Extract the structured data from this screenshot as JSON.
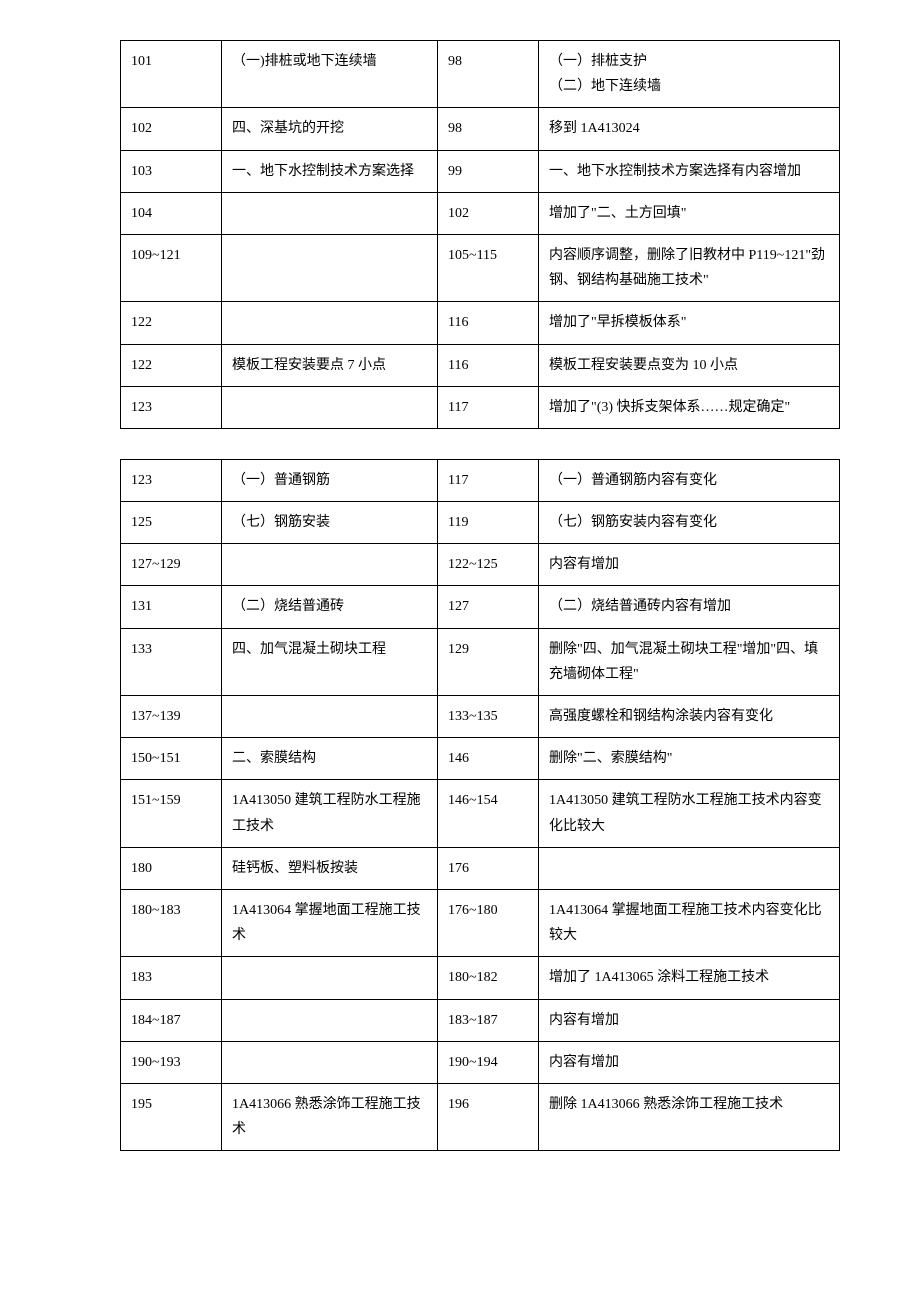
{
  "table1": {
    "rows": [
      {
        "c1": "101",
        "c2": "（一)排桩或地下连续墙",
        "c3": "98",
        "c4": "（一）排桩支护\n（二）地下连续墙"
      },
      {
        "c1": "102",
        "c2": "四、深基坑的开挖",
        "c3": "98",
        "c4": "移到 1A413024"
      },
      {
        "c1": "103",
        "c2": "一、地下水控制技术方案选择",
        "c3": "99",
        "c4": "一、地下水控制技术方案选择有内容增加"
      },
      {
        "c1": "104",
        "c2": "",
        "c3": "102",
        "c4": "增加了\"二、土方回填\""
      },
      {
        "c1": "109~121",
        "c2": "",
        "c3": "105~115",
        "c4": "内容顺序调整，删除了旧教材中 P119~121\"劲钢、钢结构基础施工技术\""
      },
      {
        "c1": "122",
        "c2": "",
        "c3": "116",
        "c4": "增加了\"早拆模板体系\""
      },
      {
        "c1": "122",
        "c2": "模板工程安装要点 7 小点",
        "c3": "116",
        "c4": "模板工程安装要点变为 10 小点"
      },
      {
        "c1": "123",
        "c2": "",
        "c3": "117",
        "c4": "增加了\"(3) 快拆支架体系……规定确定\""
      }
    ]
  },
  "table2": {
    "rows": [
      {
        "c1": "123",
        "c2": "（一）普通钢筋",
        "c3": "117",
        "c4": "（一）普通钢筋内容有变化"
      },
      {
        "c1": "125",
        "c2": "（七）钢筋安装",
        "c3": "119",
        "c4": "（七）钢筋安装内容有变化"
      },
      {
        "c1": "127~129",
        "c2": "",
        "c3": "122~125",
        "c4": "内容有增加"
      },
      {
        "c1": "131",
        "c2": "（二）烧结普通砖",
        "c3": "127",
        "c4": "（二）烧结普通砖内容有增加"
      },
      {
        "c1": "133",
        "c2": "四、加气混凝土砌块工程",
        "c3": "129",
        "c4": "删除\"四、加气混凝土砌块工程\"增加\"四、填充墙砌体工程\""
      },
      {
        "c1": "137~139",
        "c2": "",
        "c3": "133~135",
        "c4": "高强度螺栓和钢结构涂装内容有变化"
      },
      {
        "c1": "150~151",
        "c2": "二、索膜结构",
        "c3": "146",
        "c4": "删除\"二、索膜结构\""
      },
      {
        "c1": "151~159",
        "c2": "1A413050  建筑工程防水工程施工技术",
        "c3": "146~154",
        "c4": "1A413050  建筑工程防水工程施工技术内容变化比较大"
      },
      {
        "c1": "180",
        "c2": "硅钙板、塑料板按装",
        "c3": "176",
        "c4": ""
      },
      {
        "c1": "180~183",
        "c2": "1A413064 掌握地面工程施工技术",
        "c3": "176~180",
        "c4": "1A413064 掌握地面工程施工技术内容变化比较大"
      },
      {
        "c1": "183",
        "c2": "",
        "c3": "180~182",
        "c4": "增加了 1A413065 涂料工程施工技术"
      },
      {
        "c1": "184~187",
        "c2": "",
        "c3": "183~187",
        "c4": "内容有增加"
      },
      {
        "c1": "190~193",
        "c2": "",
        "c3": "190~194",
        "c4": "内容有增加"
      },
      {
        "c1": "195",
        "c2": "1A413066 熟悉涂饰工程施工技术",
        "c3": "196",
        "c4": "删除 1A413066 熟悉涂饰工程施工技术"
      }
    ]
  }
}
